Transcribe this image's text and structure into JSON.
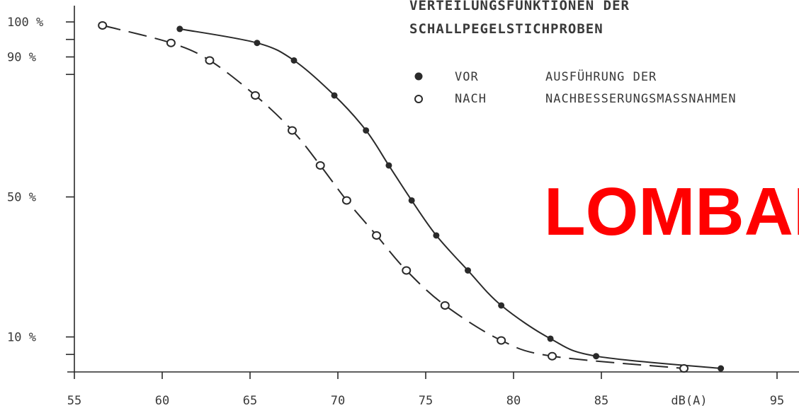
{
  "chart_data": {
    "type": "line",
    "title": [
      "VERTEILUNGSFUNKTIONEN DER",
      "SCHALLPEGELSTICHPROBEN"
    ],
    "xlabel": "dB(A)",
    "ylabel": "",
    "xlim": [
      55,
      95
    ],
    "ylim": [
      0,
      100
    ],
    "x_ticks": [
      {
        "value": 55,
        "label": "55"
      },
      {
        "value": 60,
        "label": "60"
      },
      {
        "value": 65,
        "label": "65"
      },
      {
        "value": 70,
        "label": "70"
      },
      {
        "value": 75,
        "label": "75"
      },
      {
        "value": 80,
        "label": "80"
      },
      {
        "value": 85,
        "label": "85"
      },
      {
        "value": 95,
        "label": "95"
      }
    ],
    "y_ticks": [
      {
        "value": 100,
        "label": "100 %"
      },
      {
        "value": 90,
        "label": "90 %"
      },
      {
        "value": 50,
        "label": "50 %"
      },
      {
        "value": 10,
        "label": "10 %"
      }
    ],
    "y_minor_ticks": [
      95,
      85,
      5
    ],
    "legend": {
      "entries": [
        {
          "marker": "filled-circle",
          "label": "VOR"
        },
        {
          "marker": "open-circle",
          "label": "NACH"
        }
      ],
      "suffix_lines": [
        "AUSFÜHRUNG DER",
        "NACHBESSERUNGSMASSNAHMEN"
      ]
    },
    "series": [
      {
        "name": "VOR",
        "marker": "filled",
        "line": "solid",
        "points": [
          {
            "x": 61.0,
            "y": 98
          },
          {
            "x": 65.4,
            "y": 94
          },
          {
            "x": 67.5,
            "y": 89
          },
          {
            "x": 69.8,
            "y": 79
          },
          {
            "x": 71.6,
            "y": 69
          },
          {
            "x": 72.9,
            "y": 59
          },
          {
            "x": 74.2,
            "y": 49
          },
          {
            "x": 75.6,
            "y": 39
          },
          {
            "x": 77.4,
            "y": 29
          },
          {
            "x": 79.3,
            "y": 19
          },
          {
            "x": 82.1,
            "y": 9.5
          },
          {
            "x": 84.7,
            "y": 4.5
          },
          {
            "x": 91.8,
            "y": 1
          }
        ]
      },
      {
        "name": "NACH",
        "marker": "open",
        "line": "dashed",
        "points": [
          {
            "x": 56.6,
            "y": 99
          },
          {
            "x": 60.5,
            "y": 94
          },
          {
            "x": 62.7,
            "y": 89
          },
          {
            "x": 65.3,
            "y": 79
          },
          {
            "x": 67.4,
            "y": 69
          },
          {
            "x": 69.0,
            "y": 59
          },
          {
            "x": 70.5,
            "y": 49
          },
          {
            "x": 72.2,
            "y": 39
          },
          {
            "x": 73.9,
            "y": 29
          },
          {
            "x": 76.1,
            "y": 19
          },
          {
            "x": 79.3,
            "y": 9
          },
          {
            "x": 82.2,
            "y": 4.5
          },
          {
            "x": 89.7,
            "y": 1
          }
        ]
      }
    ],
    "watermark": {
      "text": "LOMBAI",
      "color": "#ff0000"
    },
    "colors": {
      "ink": "#2a2a2a",
      "text": "#3a3a3a"
    }
  }
}
